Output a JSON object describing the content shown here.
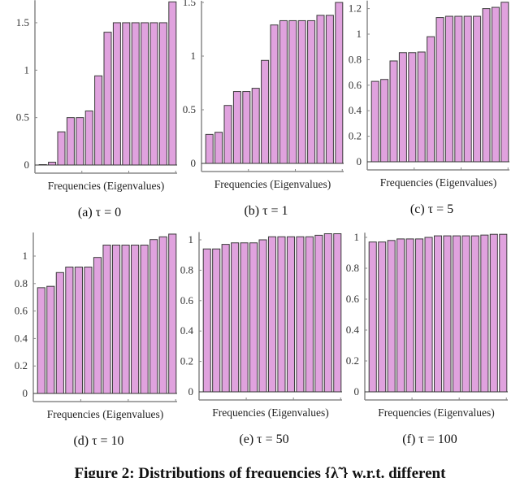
{
  "figure_caption": "Figure 2: Distributions of frequencies {λ̃ } w.r.t. different",
  "colors": {
    "bar_fill": "#e0a2de",
    "bar_stroke": "#3a3a3a",
    "axis": "#888888"
  },
  "chart_data": [
    {
      "type": "bar",
      "caption": "(a)  τ = 0",
      "xlabel": "Frequencies (Eigenvalues)",
      "ylabel": "",
      "values": [
        0,
        0.03,
        0.35,
        0.5,
        0.5,
        0.57,
        0.94,
        1.4,
        1.5,
        1.5,
        1.5,
        1.5,
        1.5,
        1.5,
        1.72
      ],
      "yticks": [
        0,
        0.5,
        1,
        1.5
      ],
      "ytick_labels": [
        "0",
        "0.5",
        "1",
        "1.5"
      ],
      "ylim": [
        0,
        1.72
      ]
    },
    {
      "type": "bar",
      "caption": "(b)  τ = 1",
      "xlabel": "Frequencies (Eigenvalues)",
      "ylabel": "",
      "values": [
        0.27,
        0.29,
        0.54,
        0.67,
        0.67,
        0.7,
        0.96,
        1.29,
        1.33,
        1.33,
        1.33,
        1.33,
        1.38,
        1.38,
        1.5
      ],
      "yticks": [
        0,
        0.5,
        1,
        1.5
      ],
      "ytick_labels": [
        "0",
        "0.5",
        "1",
        "1.5"
      ],
      "ylim": [
        0,
        1.5
      ]
    },
    {
      "type": "bar",
      "caption": "(c)  τ = 5",
      "xlabel": "Frequencies (Eigenvalues)",
      "ylabel": "",
      "values": [
        0.63,
        0.645,
        0.79,
        0.855,
        0.855,
        0.86,
        0.98,
        1.13,
        1.14,
        1.14,
        1.14,
        1.14,
        1.2,
        1.21,
        1.25
      ],
      "yticks": [
        0,
        0.2,
        0.4,
        0.6,
        0.8,
        1,
        1.2
      ],
      "ytick_labels": [
        "0",
        "0.2",
        "0.4",
        "0.6",
        "0.8",
        "1",
        "1.2"
      ],
      "ylim": [
        0,
        1.25
      ]
    },
    {
      "type": "bar",
      "caption": "(d)  τ = 10",
      "xlabel": "Frequencies (Eigenvalues)",
      "ylabel": "",
      "values": [
        0.77,
        0.78,
        0.88,
        0.92,
        0.92,
        0.92,
        0.99,
        1.08,
        1.08,
        1.08,
        1.08,
        1.08,
        1.12,
        1.14,
        1.16
      ],
      "yticks": [
        0,
        0.2,
        0.4,
        0.6,
        0.8,
        1
      ],
      "ytick_labels": [
        "0",
        "0.2",
        "0.4",
        "0.6",
        "0.8",
        "1"
      ],
      "ylim": [
        0,
        1.16
      ]
    },
    {
      "type": "bar",
      "caption": "(e)  τ = 50",
      "xlabel": "Frequencies (Eigenvalues)",
      "ylabel": "",
      "values": [
        0.94,
        0.94,
        0.97,
        0.98,
        0.98,
        0.98,
        1.0,
        1.02,
        1.02,
        1.02,
        1.02,
        1.02,
        1.03,
        1.04,
        1.04
      ],
      "yticks": [
        0,
        0.2,
        0.4,
        0.6,
        0.8,
        1
      ],
      "ytick_labels": [
        "0",
        "0.2",
        "0.4",
        "0.6",
        "0.8",
        "1"
      ],
      "ylim": [
        0,
        1.04
      ]
    },
    {
      "type": "bar",
      "caption": "(f)  τ = 100",
      "xlabel": "Frequencies (Eigenvalues)",
      "ylabel": "",
      "values": [
        0.97,
        0.97,
        0.98,
        0.99,
        0.99,
        0.99,
        1.0,
        1.01,
        1.01,
        1.01,
        1.01,
        1.01,
        1.015,
        1.02,
        1.02
      ],
      "yticks": [
        0,
        0.2,
        0.4,
        0.6,
        0.8,
        1
      ],
      "ytick_labels": [
        "0",
        "0.2",
        "0.4",
        "0.6",
        "0.8",
        "1"
      ],
      "ylim": [
        0,
        1.02
      ]
    }
  ]
}
